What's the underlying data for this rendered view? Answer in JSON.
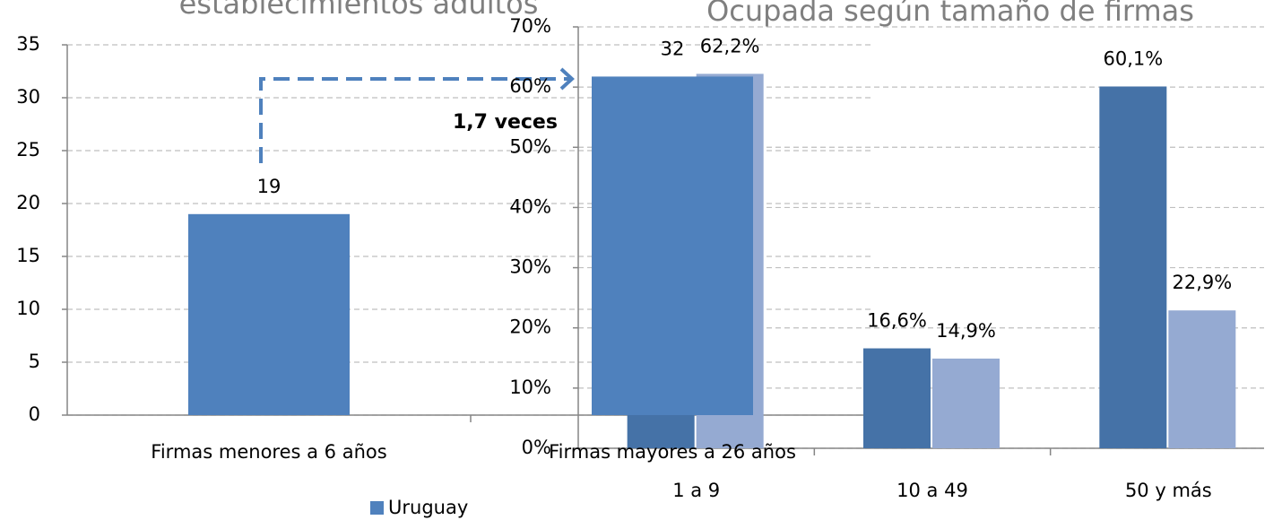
{
  "chart_data": [
    {
      "type": "bar",
      "title": "establecimientos adultos",
      "categories": [
        "Firmas menores a 6 años",
        "Firmas mayores a 26 años"
      ],
      "series": [
        {
          "name": "Uruguay",
          "color": "#4f81bd",
          "values": [
            19,
            32
          ]
        }
      ],
      "ylim": [
        0,
        35
      ],
      "yticks": [
        0,
        5,
        10,
        15,
        20,
        25,
        30,
        35
      ],
      "grid": true,
      "annotation": "1,7 veces",
      "legend": "bottom"
    },
    {
      "type": "bar",
      "title": "Ocupada según tamaño de firmas",
      "categories": [
        "1 a 9",
        "10 a 49",
        "50 y más"
      ],
      "series": [
        {
          "color": "#4572a7",
          "values": [
            61,
            16.6,
            60.1
          ],
          "value_labels": [
            null,
            "16,6%",
            "60,1%"
          ]
        },
        {
          "color": "#95aad2",
          "values": [
            62.2,
            14.9,
            22.9
          ],
          "value_labels": [
            "62,2%",
            "14,9%",
            "22,9%"
          ]
        }
      ],
      "ylim": [
        0,
        70
      ],
      "yticks": [
        {
          "value": 0,
          "label": "0%"
        },
        {
          "value": 10,
          "label": "10%"
        },
        {
          "value": 20,
          "label": "20%"
        },
        {
          "value": 30,
          "label": "30%"
        },
        {
          "value": 40,
          "label": "40%"
        },
        {
          "value": 50,
          "label": "50%"
        },
        {
          "value": 60,
          "label": "60%"
        },
        {
          "value": 70,
          "label": "70%"
        }
      ],
      "grid": true
    }
  ]
}
